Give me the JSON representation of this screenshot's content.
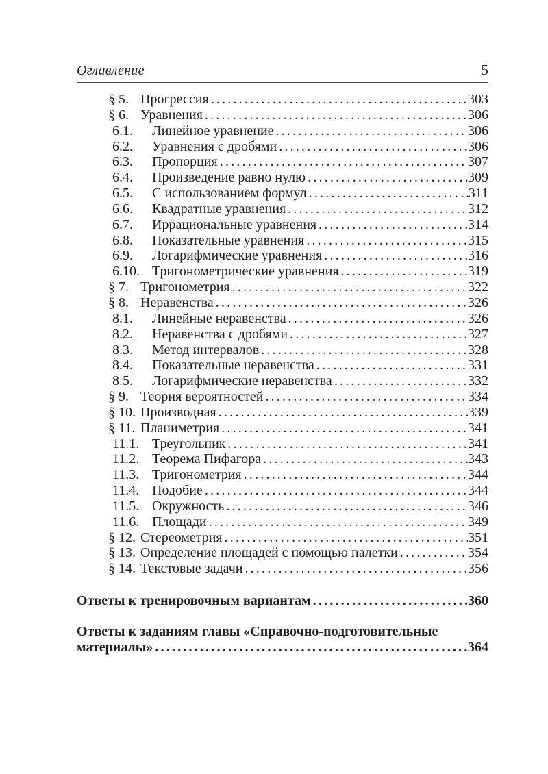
{
  "header": {
    "title": "Оглавление",
    "page_number": "5"
  },
  "toc_entries": [
    {
      "type": "section",
      "label": "§ 5.",
      "title": "Прогрессия",
      "page": "303"
    },
    {
      "type": "section",
      "label": "§ 6.",
      "title": "Уравнения",
      "page": "306"
    },
    {
      "type": "sub",
      "label": "6.1.",
      "title": "Линейное уравнение",
      "page": "306"
    },
    {
      "type": "sub",
      "label": "6.2.",
      "title": "Уравнения с дробями",
      "page": "306"
    },
    {
      "type": "sub",
      "label": "6.3.",
      "title": "Пропорция",
      "page": "307"
    },
    {
      "type": "sub",
      "label": "6.4.",
      "title": "Произведение равно нулю",
      "page": "309"
    },
    {
      "type": "sub",
      "label": "6.5.",
      "title": "С использованием формул",
      "page": "311"
    },
    {
      "type": "sub",
      "label": "6.6.",
      "title": "Квадратные уравнения",
      "page": "312"
    },
    {
      "type": "sub",
      "label": "6.7.",
      "title": "Иррациональные уравнения",
      "page": "314"
    },
    {
      "type": "sub",
      "label": "6.8.",
      "title": "Показательные уравнения",
      "page": "315"
    },
    {
      "type": "sub",
      "label": "6.9.",
      "title": "Логарифмические уравнения",
      "page": "316"
    },
    {
      "type": "sub",
      "label": "6.10.",
      "title": "Тригонометрические уравнения",
      "page": "319"
    },
    {
      "type": "section",
      "label": "§ 7.",
      "title": "Тригонометрия",
      "page": "322"
    },
    {
      "type": "section",
      "label": "§ 8.",
      "title": "Неравенства",
      "page": "326"
    },
    {
      "type": "sub",
      "label": "8.1.",
      "title": "Линейные неравенства",
      "page": "326"
    },
    {
      "type": "sub",
      "label": "8.2.",
      "title": "Неравенства с дробями",
      "page": "327"
    },
    {
      "type": "sub",
      "label": "8.3.",
      "title": "Метод интервалов",
      "page": "328"
    },
    {
      "type": "sub",
      "label": "8.4.",
      "title": "Показательные неравенства",
      "page": "331"
    },
    {
      "type": "sub",
      "label": "8.5.",
      "title": "Логарифмические неравенства",
      "page": "332"
    },
    {
      "type": "section",
      "label": "§ 9.",
      "title": "Теория вероятностей",
      "page": "334"
    },
    {
      "type": "section",
      "label": "§ 10.",
      "title": "Производная",
      "page": "339"
    },
    {
      "type": "section",
      "label": "§ 11.",
      "title": "Планиметрия",
      "page": "341"
    },
    {
      "type": "sub",
      "label": "11.1.",
      "title": "Треугольник",
      "page": "341"
    },
    {
      "type": "sub",
      "label": "11.2.",
      "title": "Теорема Пифагора",
      "page": "343"
    },
    {
      "type": "sub",
      "label": "11.3.",
      "title": "Тригонометрия",
      "page": "344"
    },
    {
      "type": "sub",
      "label": "11.4.",
      "title": "Подобие",
      "page": "344"
    },
    {
      "type": "sub",
      "label": "11.5.",
      "title": "Окружность",
      "page": "346"
    },
    {
      "type": "sub",
      "label": "11.6.",
      "title": "Площади",
      "page": "349"
    },
    {
      "type": "section",
      "label": "§ 12.",
      "title": "Стереометрия",
      "page": "351"
    },
    {
      "type": "section",
      "label": "§ 13.",
      "title": "Определение площадей с помощью палетки",
      "page": "354"
    },
    {
      "type": "section",
      "label": "§ 14.",
      "title": "Текстовые задачи",
      "page": "356"
    }
  ],
  "answers_entries": [
    {
      "title_lines": [
        "Ответы к тренировочным вариантам"
      ],
      "page": "360"
    },
    {
      "title_lines": [
        "Ответы к заданиям главы «Справочно-подготовительные",
        "материалы»"
      ],
      "page": "364"
    }
  ],
  "colors": {
    "text": "#1f1f1f",
    "rule": "#454545",
    "background": "#ffffff"
  }
}
